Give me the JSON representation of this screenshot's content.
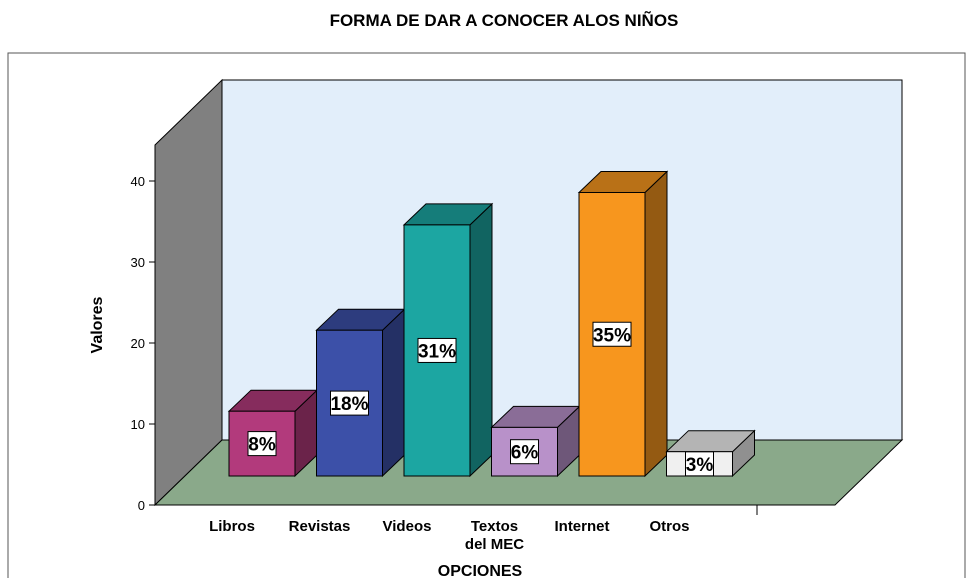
{
  "chart_data": {
    "type": "bar3d",
    "title": "FORMA DE DAR A CONOCER ALOS NIÑOS",
    "x_label": "OPCIONES",
    "y_label": "Valores",
    "categories": [
      "Libros",
      "Revistas",
      "Videos",
      "Textos del MEC",
      "Internet",
      "Otros"
    ],
    "values": [
      8,
      18,
      31,
      6,
      35,
      3
    ],
    "value_labels": [
      "8%",
      "18%",
      "31%",
      "6%",
      "35%",
      "3%"
    ],
    "colors": [
      "#b23a7c",
      "#3c50a8",
      "#1ca6a2",
      "#b891c9",
      "#f7961e",
      "#f0f0f0"
    ],
    "ylim": [
      0,
      44
    ],
    "yticks": [
      0,
      10,
      20,
      30,
      40
    ]
  }
}
